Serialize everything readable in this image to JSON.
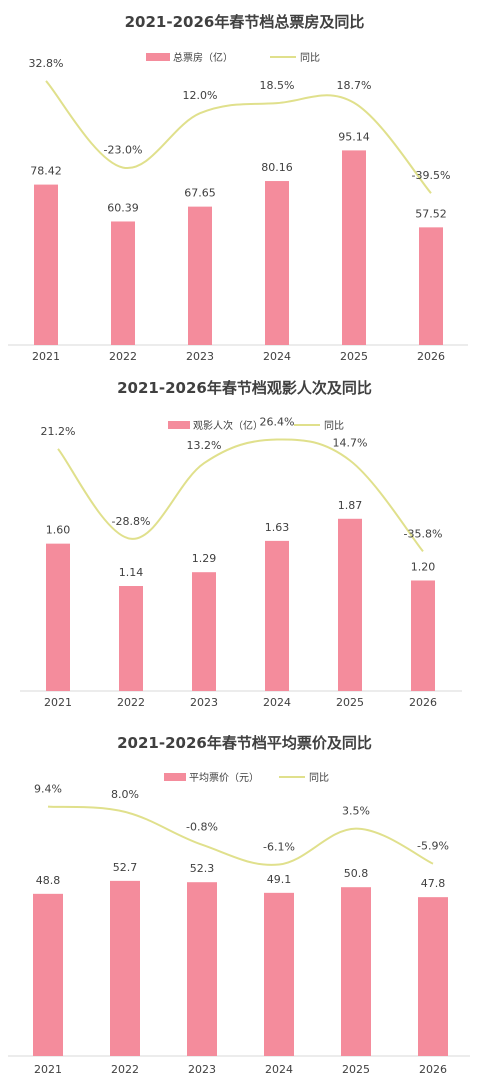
{
  "chart_data": [
    {
      "type": "bar",
      "title": "2021-2026年春节档总票房及同比",
      "categories": [
        "2021",
        "2022",
        "2023",
        "2024",
        "2025",
        "2026"
      ],
      "series": [
        {
          "name": "总票房（亿）",
          "type": "bar",
          "values": [
            78.42,
            60.39,
            67.65,
            80.16,
            95.14,
            57.52
          ],
          "labels": [
            "78.42",
            "60.39",
            "67.65",
            "80.16",
            "95.14",
            "57.52"
          ],
          "color": "#f48c9c"
        },
        {
          "name": "同比",
          "type": "line",
          "values": [
            32.8,
            -23.0,
            12.0,
            18.5,
            18.7,
            -39.5
          ],
          "labels": [
            "32.8%",
            "-23.0%",
            "12.0%",
            "18.5%",
            "18.7%",
            "-39.5%"
          ],
          "color": "#e0e08c"
        }
      ],
      "ylim": [
        0,
        110
      ],
      "y2lim": [
        -60,
        45
      ],
      "legend": "top-center",
      "grid": false
    },
    {
      "type": "bar",
      "title": "2021-2026年春节档观影人次及同比",
      "categories": [
        "2021",
        "2022",
        "2023",
        "2024",
        "2025",
        "2026"
      ],
      "series": [
        {
          "name": "观影人次（亿）",
          "type": "bar",
          "values": [
            1.6,
            1.14,
            1.29,
            1.63,
            1.87,
            1.2
          ],
          "labels": [
            "1.60",
            "1.14",
            "1.29",
            "1.63",
            "1.87",
            "1.20"
          ],
          "color": "#f48c9c"
        },
        {
          "name": "同比",
          "type": "line",
          "values": [
            21.2,
            -28.8,
            13.2,
            26.4,
            14.7,
            -35.8
          ],
          "labels": [
            "21.2%",
            "-28.8%",
            "13.2%",
            "26.4%",
            "14.7%",
            "-35.8%"
          ],
          "color": "#e0e08c"
        }
      ],
      "ylim": [
        0,
        2.15
      ],
      "y2lim": [
        -60,
        40
      ],
      "legend": "top-center",
      "grid": false
    },
    {
      "type": "bar",
      "title": "2021-2026年春节档平均票价及同比",
      "categories": [
        "2021",
        "2022",
        "2023",
        "2024",
        "2025",
        "2026"
      ],
      "series": [
        {
          "name": "平均票价（元）",
          "type": "bar",
          "values": [
            48.8,
            52.7,
            52.3,
            49.1,
            50.8,
            47.8
          ],
          "labels": [
            "48.8",
            "52.7",
            "52.3",
            "49.1",
            "50.8",
            "47.8"
          ],
          "color": "#f48c9c"
        },
        {
          "name": "同比",
          "type": "line",
          "values": [
            9.4,
            8.0,
            -0.8,
            -6.1,
            3.5,
            -5.9
          ],
          "labels": [
            "9.4%",
            "8.0%",
            "-0.8%",
            "-6.1%",
            "3.5%",
            "-5.9%"
          ],
          "color": "#e0e08c"
        }
      ],
      "ylim": [
        0,
        65
      ],
      "y2lim": [
        -25,
        16
      ],
      "legend": "top-center",
      "grid": false
    }
  ]
}
